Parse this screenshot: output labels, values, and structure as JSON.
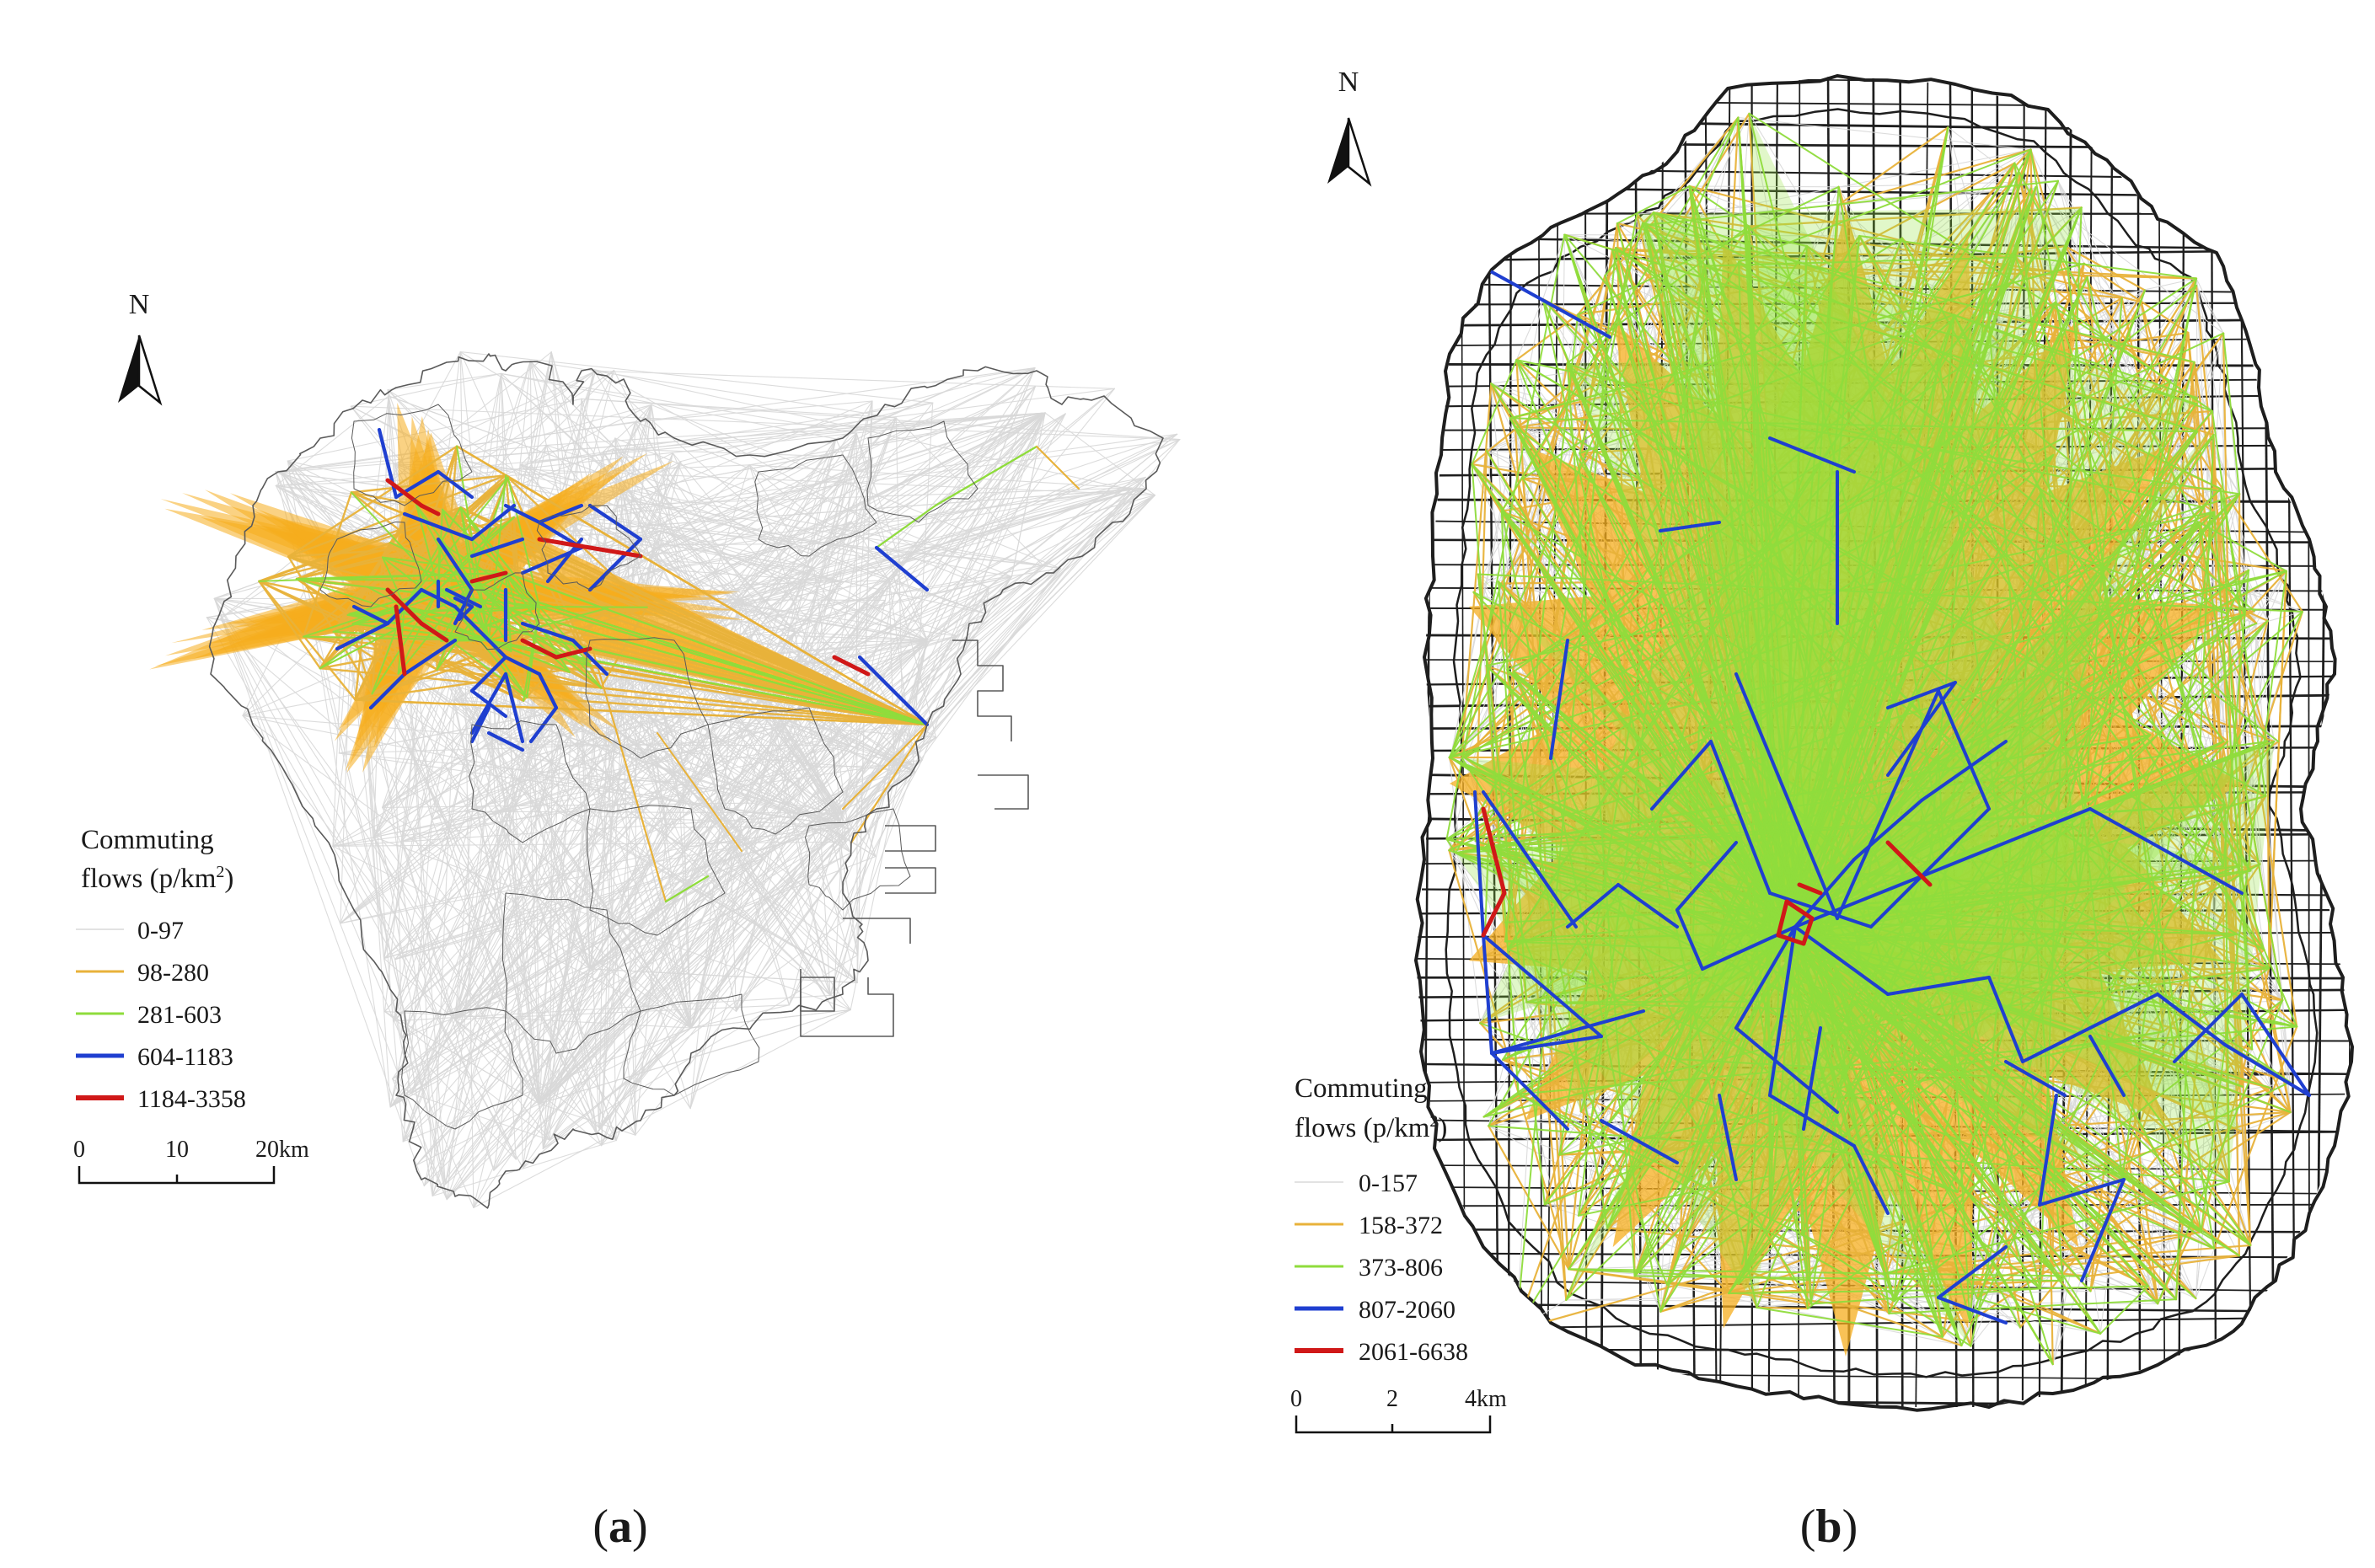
{
  "panels": [
    {
      "id": "a",
      "caption": "(a)",
      "caption_letter": "a",
      "north_label": "N",
      "legend": {
        "title_line1": "Commuting",
        "title_line2_prefix": "flows (p/km",
        "title_line2_sup": "2",
        "title_line2_suffix": ")",
        "classes": [
          {
            "label": "0-97",
            "color": "#d8d8d8",
            "level": 1
          },
          {
            "label": "98-280",
            "color": "#e8b23a",
            "level": 2
          },
          {
            "label": "281-603",
            "color": "#8fdc3c",
            "level": 3
          },
          {
            "label": "604-1183",
            "color": "#1f3fd0",
            "level": 4
          },
          {
            "label": "1184-3358",
            "color": "#d01818",
            "level": 5
          }
        ]
      },
      "scale_bar": {
        "ticks": [
          "0",
          "10"
        ],
        "end_label": "20km"
      },
      "colors": {
        "fill_orange": "#f6ad1e",
        "fill_green": "#92e13c",
        "boundary": "#5a5a5a"
      }
    },
    {
      "id": "b",
      "caption": "(b)",
      "caption_letter": "b",
      "north_label": "N",
      "legend": {
        "title_line1": "Commuting",
        "title_line2_prefix": "flows (p/km",
        "title_line2_sup": "2",
        "title_line2_suffix": ")",
        "classes": [
          {
            "label": "0-157",
            "color": "#d8d8d8",
            "level": 1
          },
          {
            "label": "158-372",
            "color": "#e8b23a",
            "level": 2
          },
          {
            "label": "373-806",
            "color": "#8fdc3c",
            "level": 3
          },
          {
            "label": "807-2060",
            "color": "#1f3fd0",
            "level": 4
          },
          {
            "label": "2061-6638",
            "color": "#d01818",
            "level": 5
          }
        ]
      },
      "scale_bar": {
        "ticks": [
          "0",
          "2"
        ],
        "end_label": "4km"
      },
      "colors": {
        "fill_orange": "#f6ad1e",
        "fill_green": "#92e13c",
        "road": "#1e1e1e"
      }
    }
  ]
}
